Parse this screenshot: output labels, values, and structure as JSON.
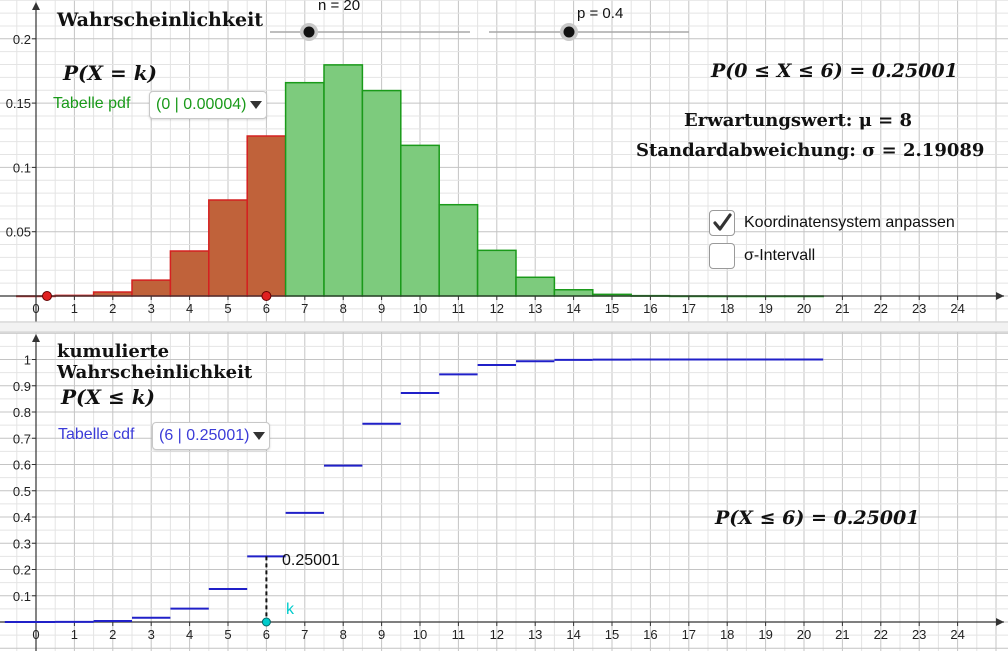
{
  "top_panel": {
    "title": "Wahrscheinlichkeit",
    "pdf_formula": "P(X = k)",
    "table_label": "Tabelle pdf",
    "table_selected": "(0 | 0.00004)",
    "slider_n_label": "n = 20",
    "slider_p_label": "p = 0.4",
    "range_prob": "P(0 ≤ X ≤ 6) = 0.25001",
    "expectation": "Erwartungswert: μ = 8",
    "std_dev": "Standardabweichung: σ = 2.19089",
    "checkbox_adjust_label": "Koordinatensystem anpassen",
    "checkbox_adjust_checked": true,
    "checkbox_sigma_label": "σ-Intervall",
    "checkbox_sigma_checked": false
  },
  "bottom_panel": {
    "title_line1": "kumulierte",
    "title_line2": "Wahrscheinlichkeit",
    "cdf_formula": "P(X ≤ k)",
    "table_label": "Tabelle cdf",
    "table_selected": "(6 | 0.25001)",
    "cdf_result": "P(X ≤ 6) = 0.25001",
    "point_value_label": "0.25001",
    "point_k_label": "k"
  },
  "colors": {
    "pdf_selected_fill": "#c0623a",
    "pdf_selected_stroke": "#d42020",
    "pdf_other_fill": "#7dcb7d",
    "pdf_other_stroke": "#1a9a1a",
    "cdf_step": "#2020c8",
    "k_point": "#00cccc",
    "grid_minor": "#e4e4e4",
    "grid_major": "#c4c4c4"
  },
  "chart_data": [
    {
      "type": "bar",
      "x": [
        0,
        1,
        2,
        3,
        4,
        5,
        6,
        7,
        8,
        9,
        10,
        11,
        12,
        13,
        14,
        15,
        16,
        17,
        18,
        19,
        20
      ],
      "values": [
        4e-05,
        0.00049,
        0.00309,
        0.01235,
        0.03499,
        0.07465,
        0.12441,
        0.16588,
        0.17971,
        0.15974,
        0.11714,
        0.07099,
        0.0355,
        0.01456,
        0.00485,
        0.00129,
        0.00027,
        4e-05,
        0.0,
        0.0,
        0.0
      ],
      "highlight_range": [
        0,
        6
      ],
      "xlim": [
        -0.9,
        25
      ],
      "ylim": [
        0,
        0.21
      ],
      "x_ticks": [
        0,
        1,
        2,
        3,
        4,
        5,
        6,
        7,
        8,
        9,
        10,
        11,
        12,
        13,
        14,
        15,
        16,
        17,
        18,
        19,
        20,
        21,
        22,
        23,
        24
      ],
      "y_ticks": [
        0.05,
        0.1,
        0.15,
        0.2
      ],
      "grid": true
    },
    {
      "type": "line",
      "x": [
        0,
        1,
        2,
        3,
        4,
        5,
        6,
        7,
        8,
        9,
        10,
        11,
        12,
        13,
        14,
        15,
        16,
        17,
        18,
        19,
        20
      ],
      "values": [
        4e-05,
        0.00052,
        0.00361,
        0.01596,
        0.05095,
        0.1256,
        0.25001,
        0.41589,
        0.5956,
        0.75534,
        0.87248,
        0.94347,
        0.97897,
        0.99353,
        0.99839,
        0.99968,
        0.99995,
        0.99999,
        1,
        1,
        1
      ],
      "marked_k": 6,
      "xlim": [
        -0.9,
        25
      ],
      "ylim": [
        -0.02,
        1.09
      ],
      "x_ticks": [
        0,
        1,
        2,
        3,
        4,
        5,
        6,
        7,
        8,
        9,
        10,
        11,
        12,
        13,
        14,
        15,
        16,
        17,
        18,
        19,
        20,
        21,
        22,
        23,
        24
      ],
      "y_ticks": [
        0.1,
        0.2,
        0.3,
        0.4,
        0.5,
        0.6,
        0.7,
        0.8,
        0.9,
        1
      ],
      "grid": true
    }
  ]
}
